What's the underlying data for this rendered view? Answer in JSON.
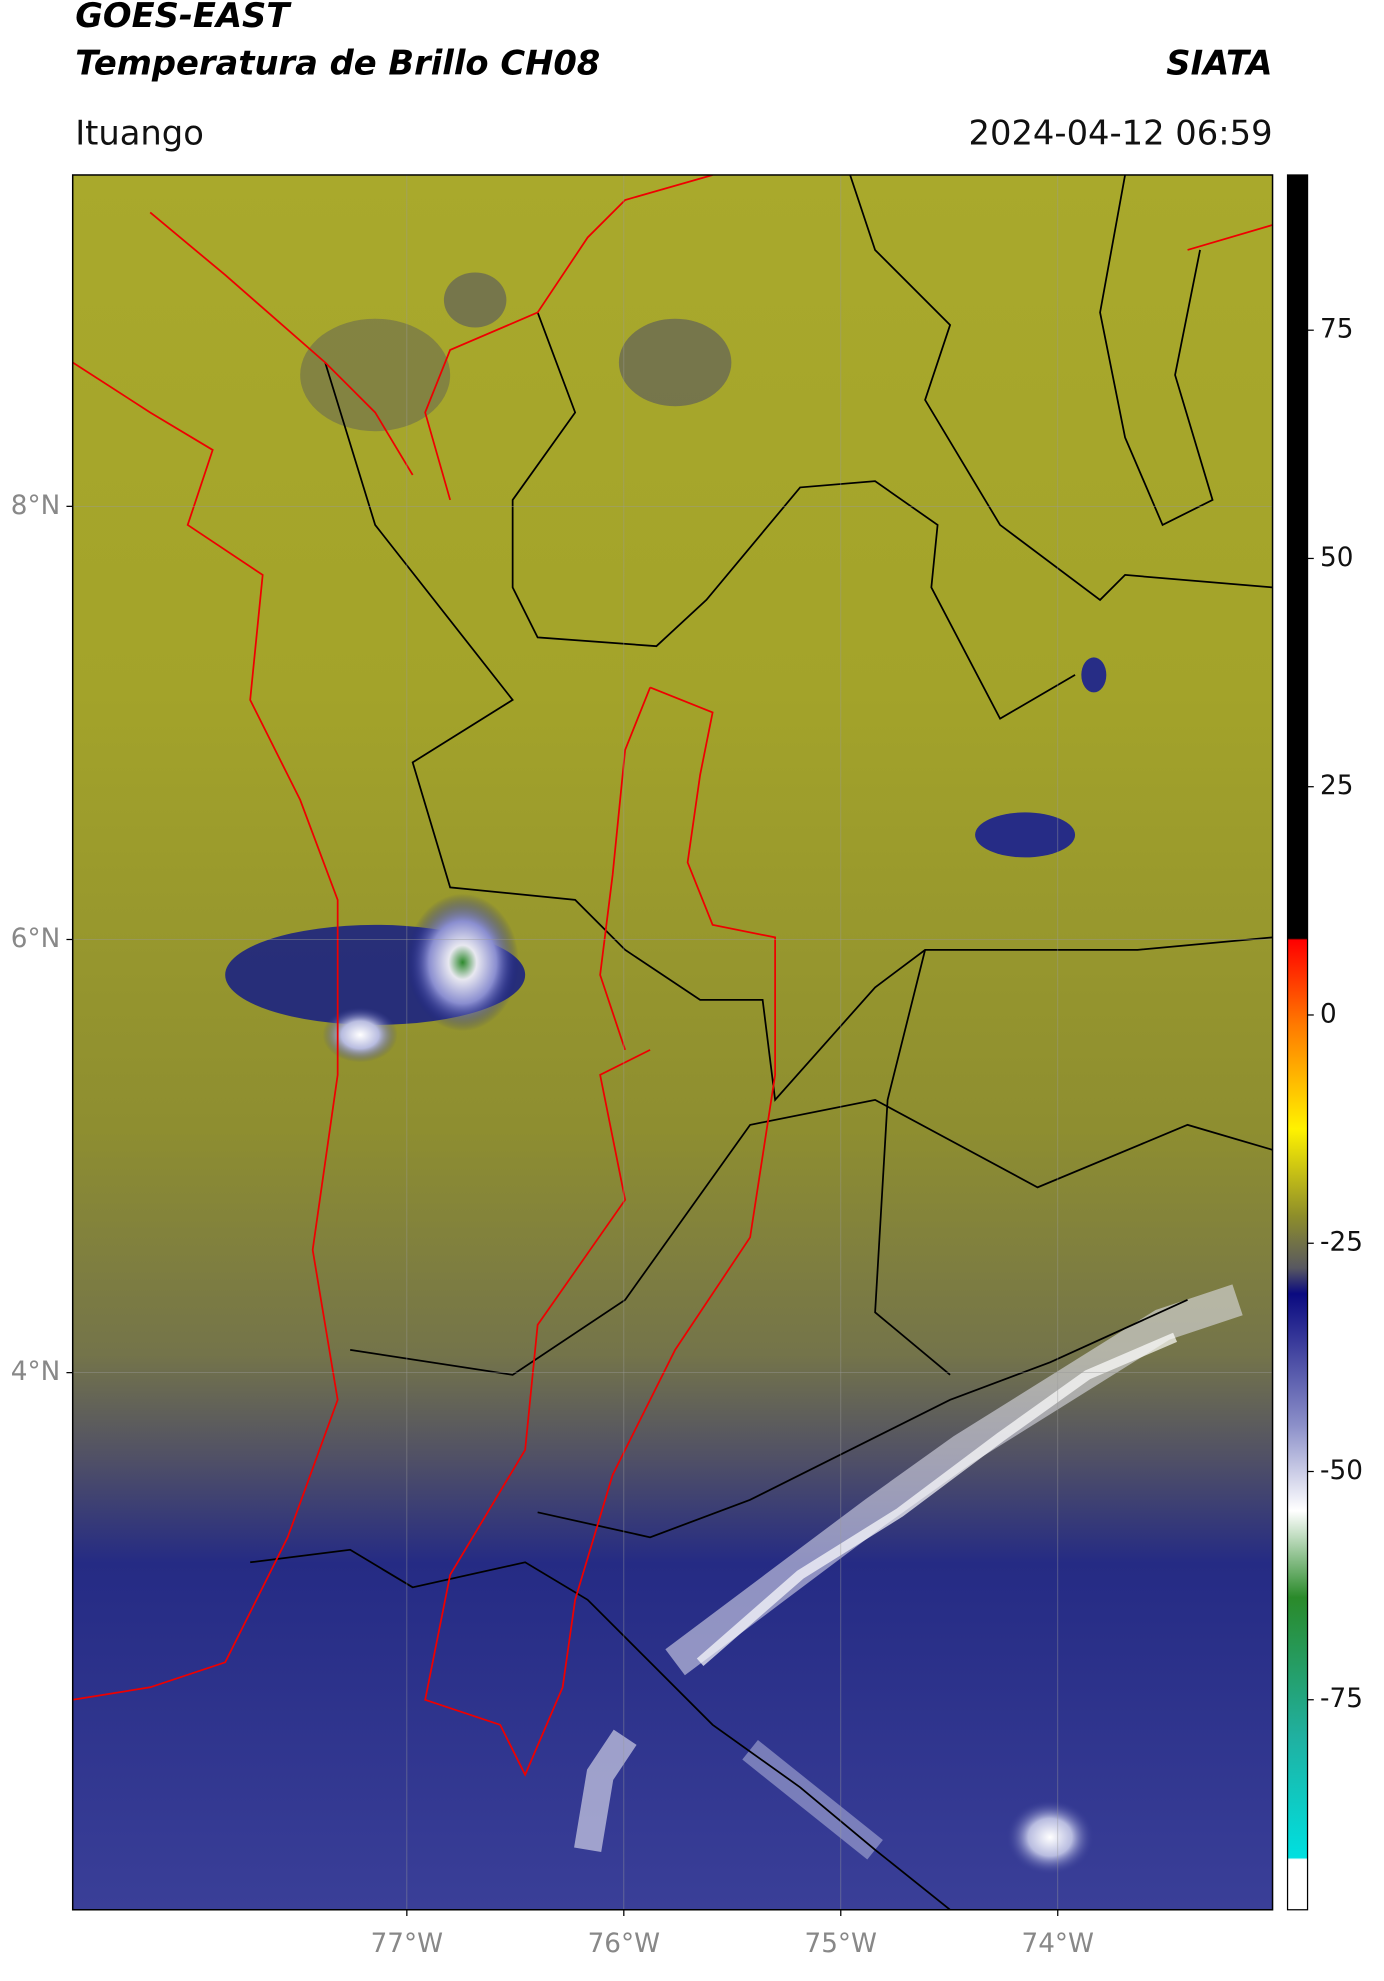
{
  "chart_data": {
    "type": "map",
    "title": "GOES-EAST",
    "subtitle": "Temperatura de Brillo CH08",
    "source": "SIATA",
    "location": "Ituango",
    "timestamp": "2024-04-12 06:59",
    "xlim": [
      -78.54,
      -73.01
    ],
    "ylim": [
      1.52,
      9.53
    ],
    "xticks": [
      {
        "value": -77,
        "label": "77°W"
      },
      {
        "value": -76,
        "label": "76°W"
      },
      {
        "value": -75,
        "label": "75°W"
      },
      {
        "value": -74,
        "label": "74°W"
      }
    ],
    "yticks": [
      {
        "value": 8,
        "label": "8°N"
      },
      {
        "value": 6,
        "label": "6°N"
      },
      {
        "value": 4,
        "label": "4°N"
      }
    ],
    "grid": true,
    "colorbar": {
      "ylim": [
        -98,
        92
      ],
      "yticks": [
        75,
        50,
        25,
        0,
        -25,
        -50,
        -75
      ]
    }
  }
}
